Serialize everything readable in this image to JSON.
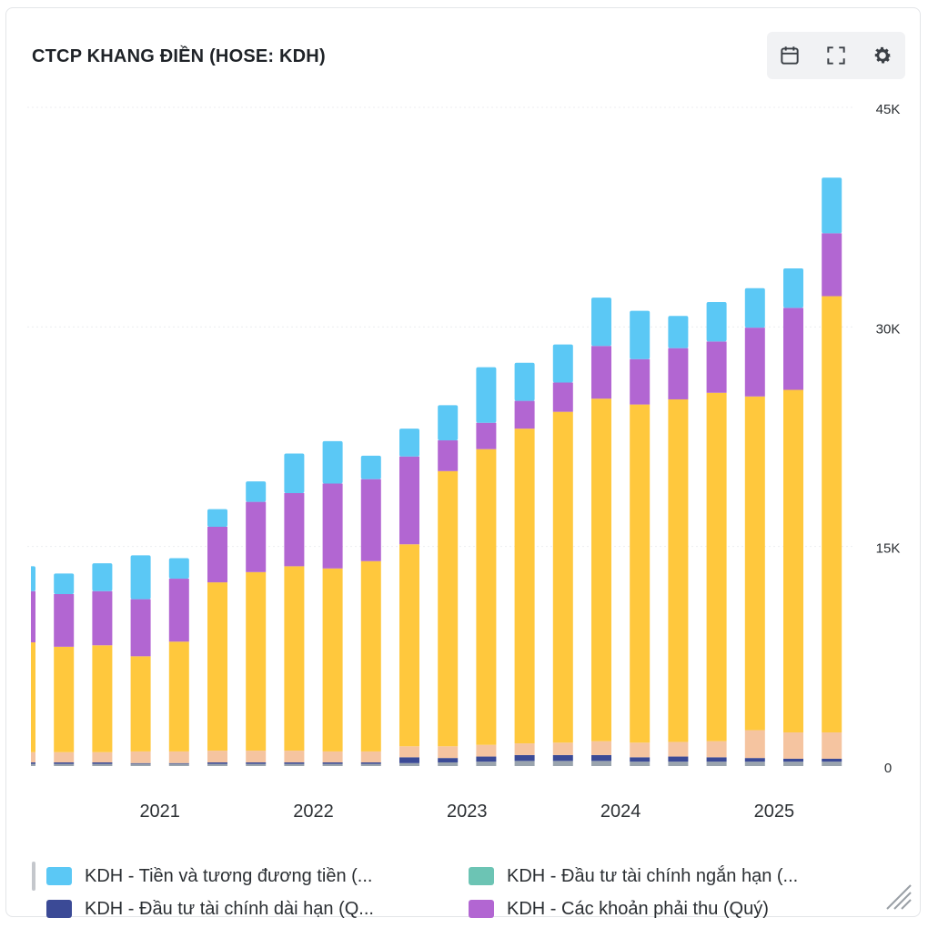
{
  "header": {
    "title": "CTCP KHANG ĐIỀN (HOSE: KDH)"
  },
  "toolbar": {
    "icons": [
      "calendar-icon",
      "fullscreen-icon",
      "gear-icon"
    ]
  },
  "legend": {
    "items": [
      {
        "label": "KDH - Tiền và tương đương tiền (...",
        "color": "#5bc8f5"
      },
      {
        "label": "KDH - Đầu tư tài chính ngắn hạn (...",
        "color": "#6cc4b4"
      },
      {
        "label": "KDH - Đầu tư tài chính dài hạn (Q...",
        "color": "#3b4a96"
      },
      {
        "label": "KDH - Các khoản phải thu (Quý)",
        "color": "#b266d2"
      }
    ]
  },
  "chart_data": {
    "type": "bar",
    "stacked": true,
    "y_axis_position": "right",
    "ylim": [
      0,
      45000
    ],
    "yticks": [
      0,
      15000,
      30000,
      45000
    ],
    "ytick_labels": [
      "0",
      "15K",
      "30K",
      "45K"
    ],
    "x_tick_labels": [
      {
        "label": "2021",
        "at_bar": 3.5
      },
      {
        "label": "2022",
        "at_bar": 7.5
      },
      {
        "label": "2023",
        "at_bar": 11.5
      },
      {
        "label": "2024",
        "at_bar": 15.5
      },
      {
        "label": "2025",
        "at_bar": 19.5
      }
    ],
    "grid": true,
    "legend_position": "bottom",
    "series": [
      {
        "color": "#9aa4ae",
        "values": [
          150,
          150,
          150,
          150,
          150,
          150,
          150,
          150,
          150,
          150,
          200,
          250,
          300,
          350,
          350,
          350,
          300,
          300,
          300,
          300,
          300,
          300
        ]
      },
      {
        "color": "#3b4a96",
        "values": [
          100,
          100,
          100,
          50,
          50,
          100,
          100,
          100,
          100,
          100,
          400,
          300,
          350,
          400,
          400,
          400,
          300,
          350,
          300,
          250,
          200,
          200
        ]
      },
      {
        "color": "#6cc4b4",
        "values": [
          0,
          0,
          0,
          0,
          0,
          0,
          0,
          0,
          0,
          0,
          0,
          0,
          0,
          0,
          0,
          0,
          0,
          0,
          0,
          0,
          0,
          0
        ]
      },
      {
        "color": "#f5c4a0",
        "values": [
          700,
          700,
          700,
          800,
          800,
          800,
          800,
          800,
          750,
          750,
          750,
          800,
          800,
          800,
          850,
          950,
          1000,
          1000,
          1100,
          1900,
          1800,
          1800
        ]
      },
      {
        "color": "#ffc83d",
        "values": [
          7500,
          7200,
          7300,
          6500,
          7500,
          11500,
          12200,
          12600,
          12500,
          13000,
          13800,
          18800,
          20200,
          21500,
          22600,
          23400,
          23100,
          23400,
          23800,
          22800,
          23400,
          29800
        ]
      },
      {
        "color": "#b266d2",
        "values": [
          3500,
          3600,
          3700,
          3900,
          4300,
          3800,
          4800,
          5000,
          5800,
          5600,
          6000,
          2100,
          1800,
          1900,
          2000,
          3600,
          3100,
          3500,
          3500,
          4700,
          5600,
          4300
        ]
      },
      {
        "color": "#5bc8f5",
        "values": [
          1700,
          1400,
          1900,
          3000,
          1400,
          1200,
          1400,
          2700,
          2900,
          1600,
          1900,
          2400,
          3800,
          2600,
          2600,
          3300,
          3300,
          2200,
          2700,
          2700,
          2700,
          3800
        ]
      }
    ]
  }
}
